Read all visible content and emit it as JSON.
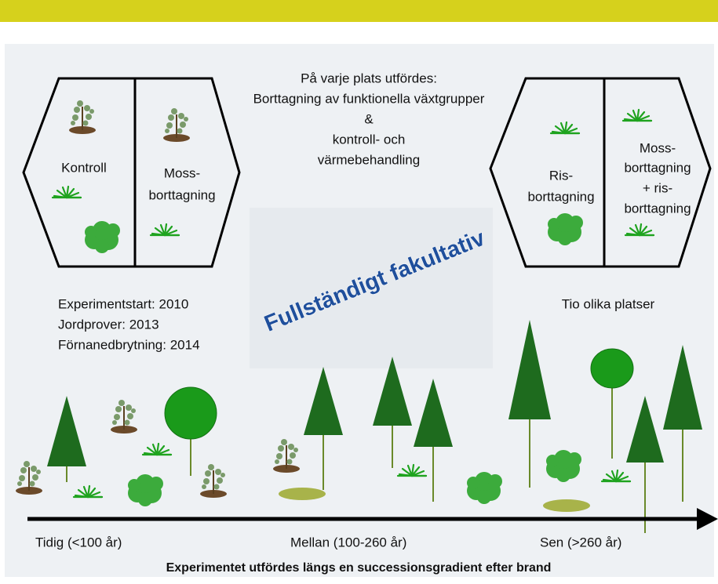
{
  "header": {
    "lines": [
      "På varje plats utfördes:",
      "Borttagning av funktionella växtgrupper",
      "&",
      "kontroll- och",
      "värmebehandling"
    ]
  },
  "left_plot": {
    "control": "Kontroll",
    "moss": [
      "Moss-",
      "borttagning"
    ]
  },
  "right_plot": {
    "shrub": [
      "Ris-",
      "borttagning"
    ],
    "moss_shrub": [
      "Moss-",
      "borttagning",
      "+ ris-",
      "borttagning"
    ]
  },
  "watermark": "Fullständigt fakultativ",
  "dates": [
    "Experimentstart: 2010",
    "Jordprover: 2013",
    "Förnanedbrytning: 2014"
  ],
  "sites": "Tio olika platser",
  "stages": [
    "Tidig (<100 år)",
    "Mellan (100-260 år)",
    "Sen (>260  år)"
  ],
  "caption": "Experimentet utfördes längs en successionsgradient efter brand"
}
